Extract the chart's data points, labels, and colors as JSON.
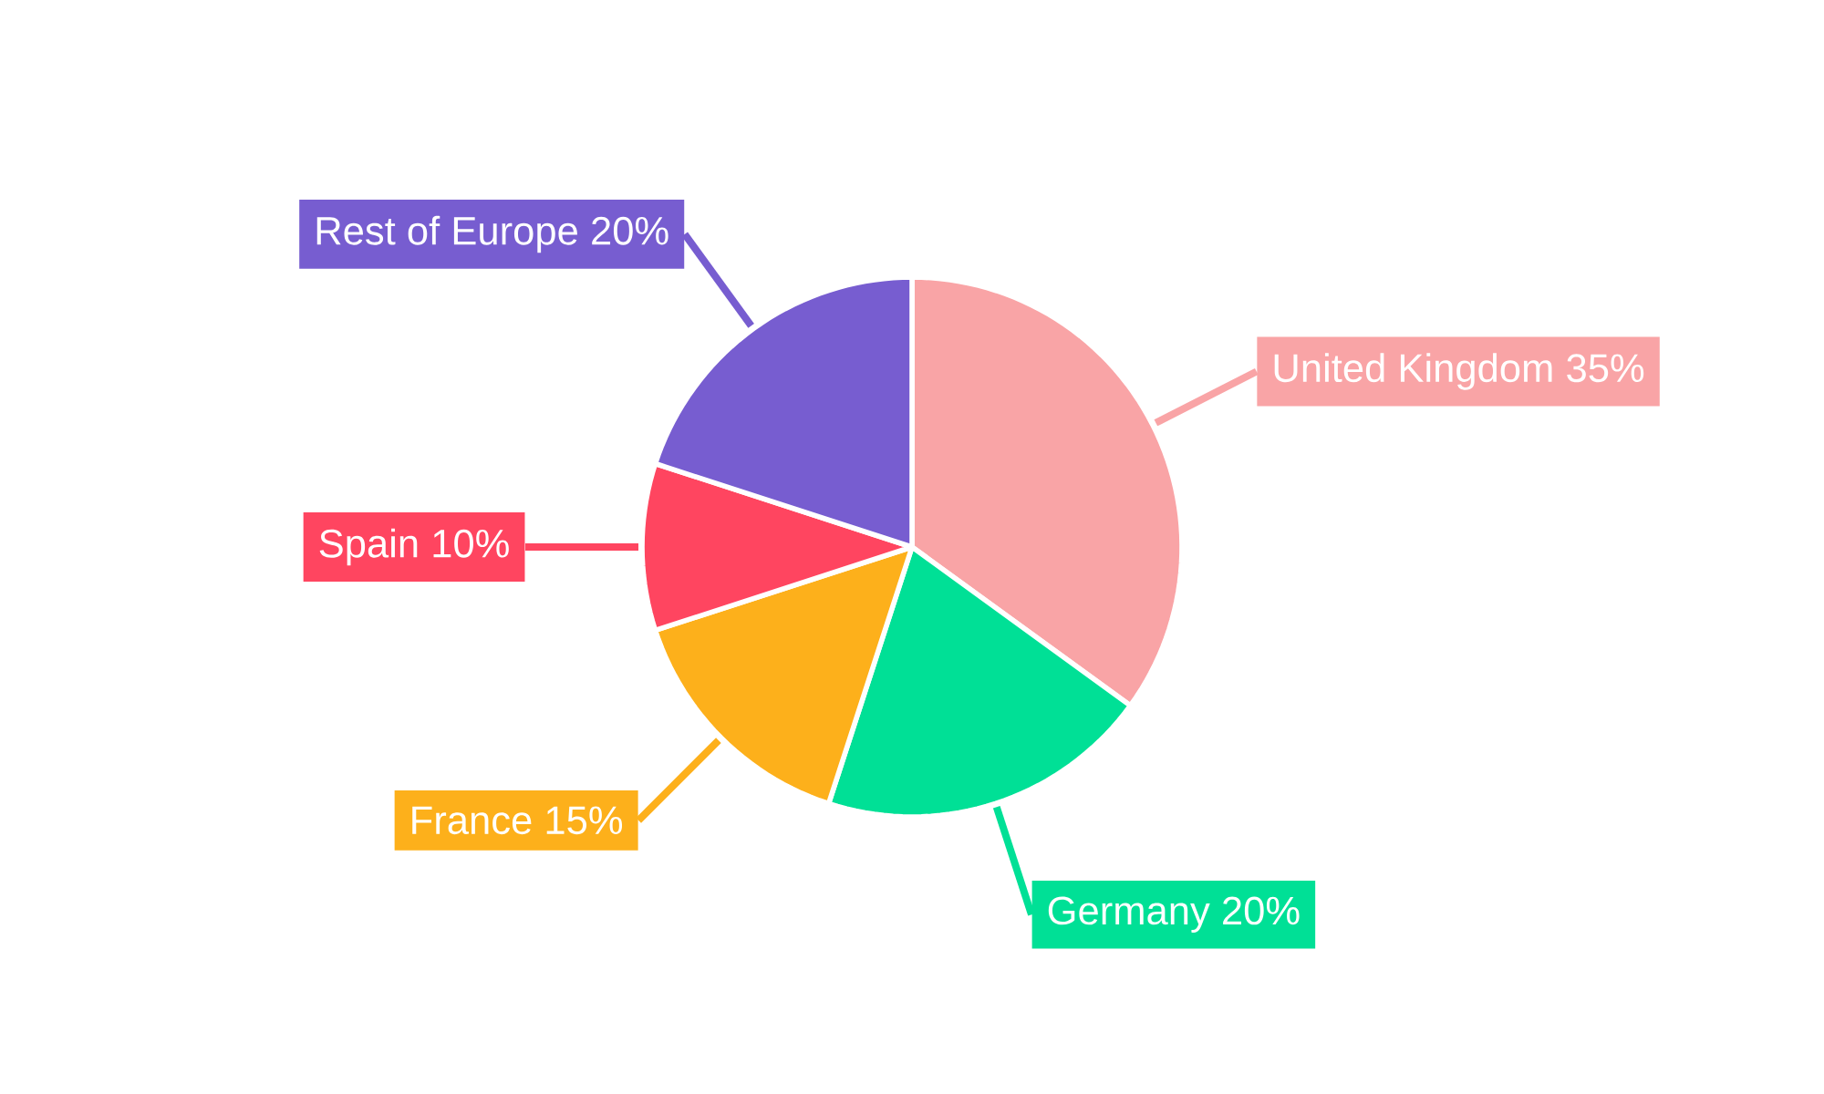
{
  "chart_data": {
    "type": "pie",
    "categories": [
      "United Kingdom",
      "Germany",
      "France",
      "Spain",
      "Rest of Europe"
    ],
    "values": [
      35,
      20,
      15,
      10,
      20
    ],
    "value_labels": [
      "35%",
      "20%",
      "15%",
      "10%",
      "20%"
    ],
    "colors": [
      "#f9a4a6",
      "#00e096",
      "#fdb01b",
      "#ff4560",
      "#775dd0"
    ]
  }
}
